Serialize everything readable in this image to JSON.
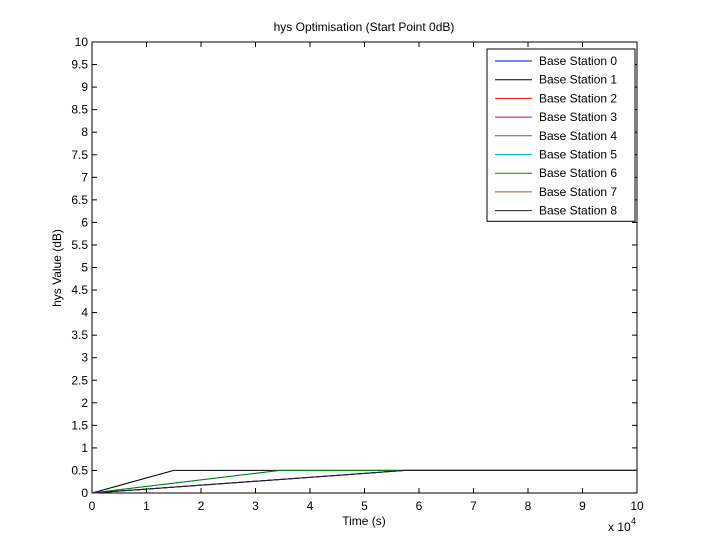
{
  "chart_data": {
    "type": "line",
    "title": "hys Optimisation (Start Point 0dB)",
    "xlabel": "Time (s)",
    "ylabel": "hys Value (dB)",
    "x_multiplier": "x 10",
    "x_multiplier_exp": "4",
    "xlim": [
      0,
      10
    ],
    "ylim": [
      0,
      10
    ],
    "xticks": [
      "0",
      "1",
      "2",
      "3",
      "4",
      "5",
      "6",
      "7",
      "8",
      "9",
      "10"
    ],
    "yticks": [
      "0",
      "0.5",
      "1",
      "1.5",
      "2",
      "2.5",
      "3",
      "3.5",
      "4",
      "4.5",
      "5",
      "5.5",
      "6",
      "6.5",
      "7",
      "7.5",
      "8",
      "8.5",
      "9",
      "9.5",
      "10"
    ],
    "grid": false,
    "legend_position": "top-right",
    "series": [
      {
        "name": "Base Station 0",
        "color": "#0000ff",
        "x": [
          0,
          5.75,
          10
        ],
        "y": [
          0,
          0.5,
          0.5
        ]
      },
      {
        "name": "Base Station 1",
        "color": "#000000",
        "x": [
          0,
          1.5,
          10
        ],
        "y": [
          0,
          0.5,
          0.5
        ]
      },
      {
        "name": "Base Station 2",
        "color": "#ff0000",
        "x": [
          0,
          5.75,
          10
        ],
        "y": [
          0,
          0.5,
          0.5
        ]
      },
      {
        "name": "Base Station 3",
        "color": "#bf00bf",
        "x": [
          0,
          5.75,
          10
        ],
        "y": [
          0,
          0.5,
          0.5
        ]
      },
      {
        "name": "Base Station 4",
        "color": "#666666",
        "x": [
          0,
          5.75,
          10
        ],
        "y": [
          0,
          0.5,
          0.5
        ]
      },
      {
        "name": "Base Station 5",
        "color": "#00bfbf",
        "x": [
          0,
          3.45,
          10
        ],
        "y": [
          0,
          0.5,
          0.5
        ]
      },
      {
        "name": "Base Station 6",
        "color": "#008000",
        "x": [
          0,
          3.45,
          10
        ],
        "y": [
          0,
          0.5,
          0.5
        ]
      },
      {
        "name": "Base Station 7",
        "color": "#a0522d",
        "x": [
          0,
          5.75,
          10
        ],
        "y": [
          0,
          0.5,
          0.5
        ]
      },
      {
        "name": "Base Station 8",
        "color": "#1a1a40",
        "x": [
          0,
          5.75,
          10
        ],
        "y": [
          0,
          0.5,
          0.5
        ]
      }
    ]
  }
}
